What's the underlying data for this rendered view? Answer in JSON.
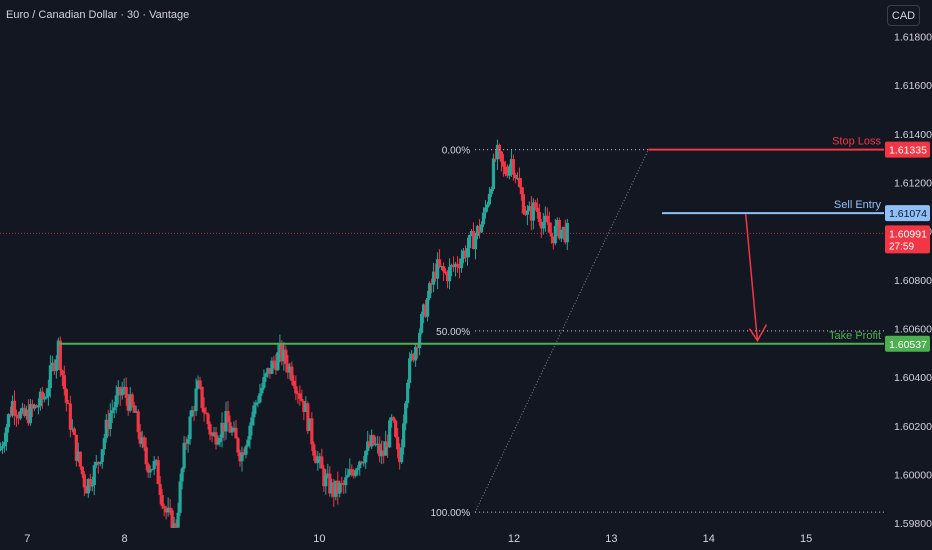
{
  "header": {
    "title": "Euro / Canadian Dollar · 30 · Vantage",
    "currency": "CAD"
  },
  "colors": {
    "background": "#131722",
    "bull": "#26a69a",
    "bear": "#f23645",
    "stop_loss": "#f23645",
    "sell_entry": "#90bff9",
    "take_profit": "#4caf50",
    "arrow": "#f23645",
    "fib_line": "#b2b5be"
  },
  "chart_data": {
    "type": "candlestick",
    "title": "Euro / Canadian Dollar · 30 · Vantage",
    "y_range": [
      1.5978,
      1.6195
    ],
    "y_ticks": [
      1.618,
      1.616,
      1.614,
      1.612,
      1.61,
      1.608,
      1.606,
      1.604,
      1.602,
      1.6,
      1.598
    ],
    "y_tick_labels": [
      "1.61800",
      "1.61600",
      "1.61400",
      "1.61200",
      "1.61000",
      "1.60800",
      "1.60600",
      "1.60400",
      "1.60200",
      "1.60000",
      "1.59800"
    ],
    "x_ticks": [
      {
        "label": "7",
        "day": 7
      },
      {
        "label": "8",
        "day": 8
      },
      {
        "label": "10",
        "day": 10
      },
      {
        "label": "12",
        "day": 12
      },
      {
        "label": "13",
        "day": 13
      },
      {
        "label": "14",
        "day": 14
      },
      {
        "label": "15",
        "day": 15
      }
    ],
    "x_range_days": [
      6.72,
      15.8
    ],
    "current_price": {
      "value": 1.60991,
      "label": "1.60991",
      "countdown": "27:59"
    },
    "levels": [
      {
        "name": "Stop Loss",
        "value": 1.61335,
        "label": "1.61335",
        "start_day": 13.38
      },
      {
        "name": "Sell Entry",
        "value": 1.61074,
        "label": "1.61074",
        "start_day": 13.52
      },
      {
        "name": "Take Profit",
        "value": 1.60537,
        "label": "1.60537",
        "start_day": 7.32
      }
    ],
    "fibonacci": {
      "start_day": 11.6,
      "start_price": 1.59845,
      "end_day": 13.38,
      "end_price": 1.61335,
      "levels": [
        {
          "label": "0.00%",
          "value": 1.61335
        },
        {
          "label": "50.00%",
          "value": 1.6059
        },
        {
          "label": "100.00%",
          "value": 1.59845
        }
      ]
    },
    "arrow": {
      "from_day": 14.38,
      "from_price": 1.6107,
      "to_day": 14.5,
      "to_price": 1.6055
    },
    "path": [
      [
        6.72,
        1.601
      ],
      [
        6.85,
        1.603
      ],
      [
        6.95,
        1.6023
      ],
      [
        7.05,
        1.6026
      ],
      [
        7.18,
        1.6032
      ],
      [
        7.32,
        1.6053
      ],
      [
        7.4,
        1.603
      ],
      [
        7.5,
        1.601
      ],
      [
        7.6,
        1.5995
      ],
      [
        7.72,
        1.6004
      ],
      [
        7.85,
        1.6025
      ],
      [
        7.98,
        1.6035
      ],
      [
        8.1,
        1.6025
      ],
      [
        8.22,
        1.6005
      ],
      [
        8.32,
        1.6003
      ],
      [
        8.42,
        1.5985
      ],
      [
        8.52,
        1.5977
      ],
      [
        8.62,
        1.6012
      ],
      [
        8.75,
        1.6036
      ],
      [
        8.9,
        1.6015
      ],
      [
        9.05,
        1.6022
      ],
      [
        9.2,
        1.6008
      ],
      [
        9.35,
        1.603
      ],
      [
        9.5,
        1.6044
      ],
      [
        9.6,
        1.605
      ],
      [
        9.72,
        1.6042
      ],
      [
        9.85,
        1.6028
      ],
      [
        9.95,
        1.601
      ],
      [
        10.05,
        1.5998
      ],
      [
        10.15,
        1.5993
      ],
      [
        10.25,
        1.5995
      ],
      [
        10.4,
        1.6006
      ],
      [
        10.55,
        1.6013
      ],
      [
        10.65,
        1.6007
      ],
      [
        10.75,
        1.6022
      ],
      [
        10.82,
        1.6003
      ],
      [
        10.9,
        1.604
      ],
      [
        11.0,
        1.6055
      ],
      [
        11.1,
        1.607
      ],
      [
        11.2,
        1.6085
      ],
      [
        11.3,
        1.6082
      ],
      [
        11.4,
        1.6086
      ],
      [
        11.5,
        1.6092
      ],
      [
        11.6,
        1.6098
      ],
      [
        11.68,
        1.6104
      ],
      [
        11.75,
        1.6118
      ],
      [
        11.82,
        1.6132
      ],
      [
        11.9,
        1.6124
      ],
      [
        11.98,
        1.613
      ],
      [
        12.06,
        1.6116
      ],
      [
        12.14,
        1.6106
      ],
      [
        12.22,
        1.611
      ],
      [
        12.3,
        1.6104
      ],
      [
        12.38,
        1.6098
      ],
      [
        12.46,
        1.6101
      ],
      [
        12.55,
        1.6099
      ]
    ]
  }
}
